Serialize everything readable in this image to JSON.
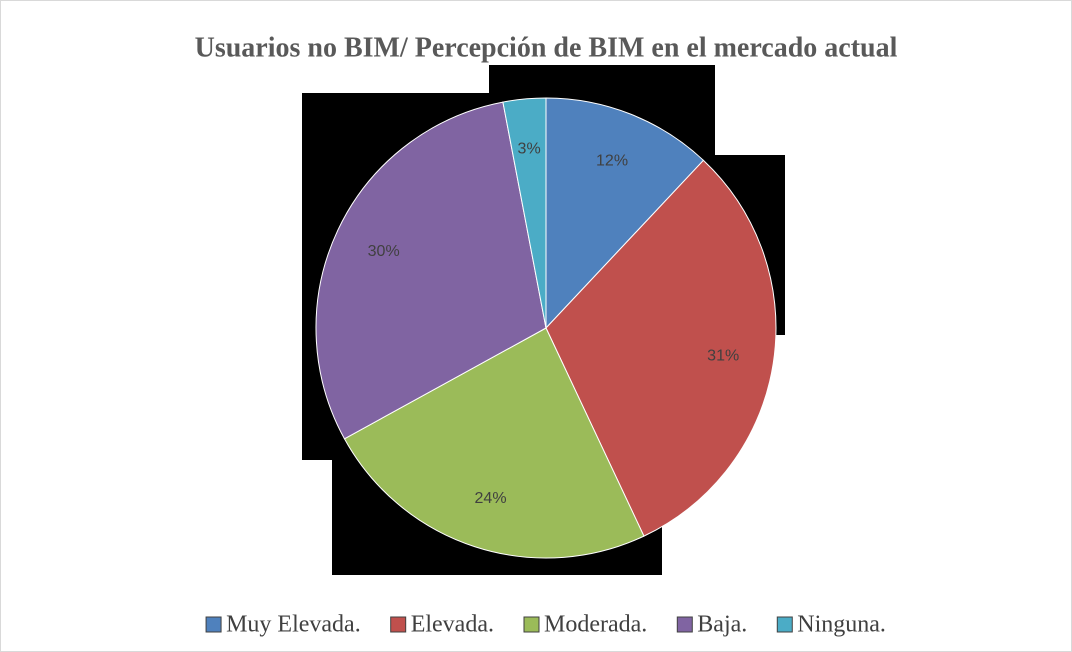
{
  "chart_data": {
    "type": "pie",
    "title": "Usuarios no BIM/ Percepción de BIM en el mercado actual",
    "categories": [
      "Muy Elevada.",
      "Elevada.",
      "Moderada.",
      "Baja.",
      "Ninguna."
    ],
    "values": [
      12,
      31,
      24,
      30,
      3
    ],
    "value_labels": [
      "12%",
      "31%",
      "24%",
      "30%",
      "3%"
    ],
    "colors": [
      "#4f81bd",
      "#c0504d",
      "#9bbb59",
      "#8064a2",
      "#4bacc6"
    ],
    "legend": "bottom"
  }
}
